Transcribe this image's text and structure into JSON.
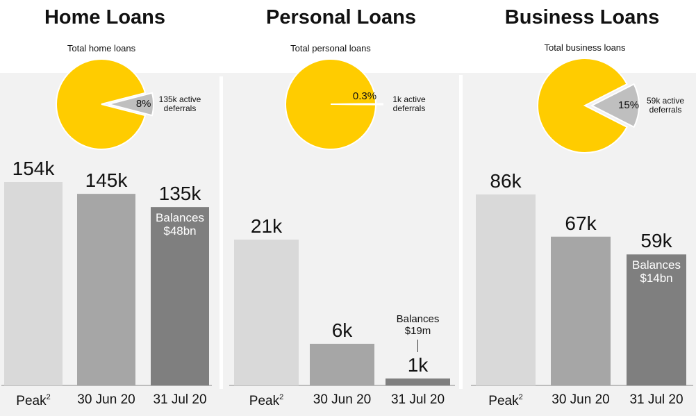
{
  "chart_data": [
    {
      "type": "bar",
      "title": "Home Loans",
      "categories": [
        "Peak",
        "30 Jun 20",
        "31 Jul 20"
      ],
      "category_footnotes": [
        "2",
        null,
        null
      ],
      "values": [
        154,
        145,
        135
      ],
      "value_labels": [
        "154k",
        "145k",
        "135k"
      ],
      "colors": [
        "#d9d9d9",
        "#a6a6a6",
        "#7f7f7f"
      ],
      "annotation": "Balances $48bn"
    },
    {
      "type": "pie",
      "title": "Total home loans",
      "categories": [
        null,
        "135k active deferrals"
      ],
      "values": [
        92,
        8
      ],
      "value_labels": [
        null,
        "8%"
      ],
      "colors": [
        "#ffcc00",
        "#bfbfbf"
      ]
    },
    {
      "type": "bar",
      "title": "Personal Loans",
      "categories": [
        "Peak",
        "30 Jun 20",
        "31 Jul 20"
      ],
      "category_footnotes": [
        "2",
        null,
        null
      ],
      "values": [
        21,
        6,
        1
      ],
      "value_labels": [
        "21k",
        "6k",
        "1k"
      ],
      "colors": [
        "#d9d9d9",
        "#a6a6a6",
        "#7f7f7f"
      ],
      "annotation": "Balances $19m"
    },
    {
      "type": "pie",
      "title": "Total personal loans",
      "categories": [
        null,
        "1k active deferrals"
      ],
      "values": [
        99.7,
        0.3
      ],
      "value_labels": [
        null,
        "0.3%"
      ],
      "colors": [
        "#ffcc00",
        "#ffcc00"
      ]
    },
    {
      "type": "bar",
      "title": "Business Loans",
      "categories": [
        "Peak",
        "30 Jun 20",
        "31 Jul 20"
      ],
      "category_footnotes": [
        "2",
        null,
        null
      ],
      "values": [
        86,
        67,
        59
      ],
      "value_labels": [
        "86k",
        "67k",
        "59k"
      ],
      "colors": [
        "#d9d9d9",
        "#a6a6a6",
        "#7f7f7f"
      ],
      "annotation": "Balances $14bn"
    },
    {
      "type": "pie",
      "title": "Total business loans",
      "categories": [
        null,
        "59k active deferrals"
      ],
      "values": [
        85,
        15
      ],
      "value_labels": [
        null,
        "15%"
      ],
      "colors": [
        "#ffcc00",
        "#bfbfbf"
      ]
    }
  ]
}
